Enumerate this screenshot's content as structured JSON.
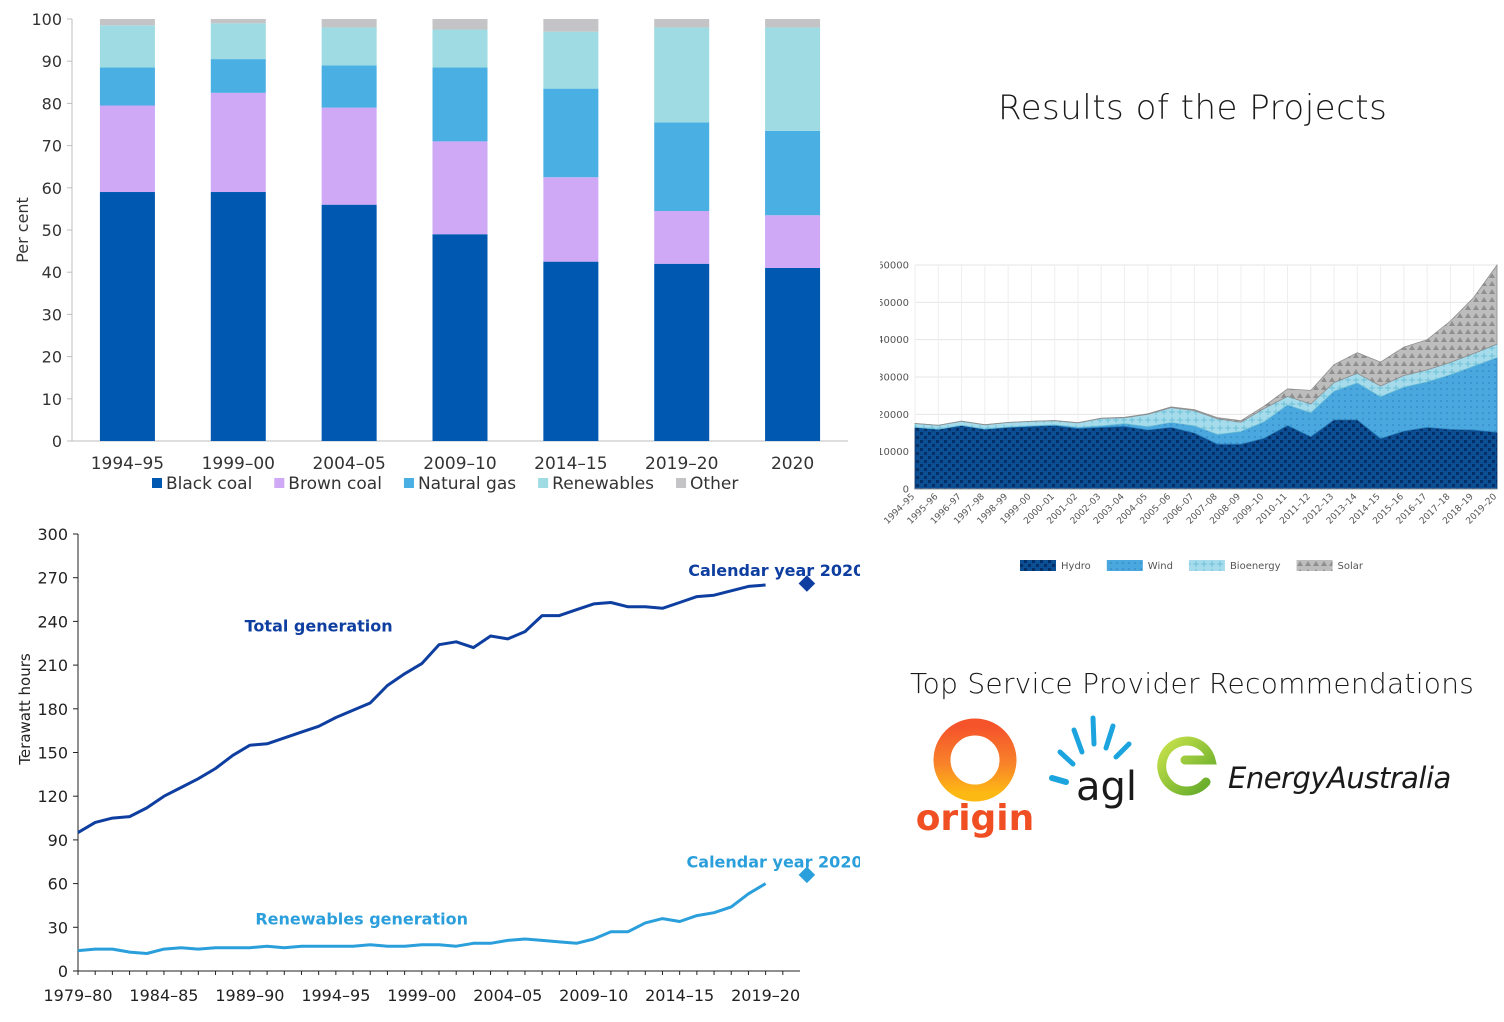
{
  "page": {
    "results_title": "Results of the Projects",
    "providers_title": "Top Service Provider Recommendations"
  },
  "providers": [
    {
      "name": "origin",
      "brand_colors": [
        "#f04e23",
        "#fdb913"
      ],
      "icon": "origin-sun-logo"
    },
    {
      "name": "agl",
      "brand_colors": [
        "#1ba4dd"
      ],
      "icon": "agl-sunburst-logo"
    },
    {
      "name": "EnergyAustralia",
      "brand_colors": [
        "#8cc63f",
        "#1a1a1a"
      ],
      "icon": "energyaustralia-e-logo"
    }
  ],
  "chart_data": [
    {
      "id": "generation-mix",
      "type": "bar",
      "stacked": true,
      "ylabel": "Per cent",
      "ylim": [
        0,
        100
      ],
      "yticks": [
        0,
        10,
        20,
        30,
        40,
        50,
        60,
        70,
        80,
        90,
        100
      ],
      "categories": [
        "1994–95",
        "1999–00",
        "2004–05",
        "2009–10",
        "2014–15",
        "2019–20",
        "2020"
      ],
      "series": [
        {
          "name": "Black coal",
          "color": "#0058b0",
          "values": [
            59,
            59,
            56,
            49,
            42.5,
            42,
            41
          ]
        },
        {
          "name": "Brown coal",
          "color": "#cfa9f5",
          "values": [
            20.5,
            23.5,
            23,
            22,
            20,
            12.5,
            12.5
          ]
        },
        {
          "name": "Natural gas",
          "color": "#4aafe2",
          "values": [
            9,
            8,
            10,
            17.5,
            21,
            21,
            20
          ]
        },
        {
          "name": "Renewables",
          "color": "#9edbe2",
          "values": [
            10,
            8.5,
            9,
            9,
            13.5,
            22.5,
            24.5
          ]
        },
        {
          "name": "Other",
          "color": "#c4c4c6",
          "values": [
            1.5,
            1,
            2,
            2.5,
            3,
            2,
            2
          ]
        }
      ],
      "legend_position": "bottom"
    },
    {
      "id": "generation-trend",
      "type": "line",
      "ylabel": "Terawatt hours",
      "ylim": [
        0,
        300
      ],
      "yticks": [
        0,
        30,
        60,
        90,
        120,
        150,
        180,
        210,
        240,
        270,
        300
      ],
      "xlim": [
        1979,
        2021
      ],
      "xtick_positions": [
        1979,
        1984,
        1989,
        1994,
        1999,
        2004,
        2009,
        2014,
        2019
      ],
      "xtick_labels": [
        "1979–80",
        "1984–85",
        "1989–90",
        "1994–95",
        "1999–00",
        "2004–05",
        "2009–10",
        "2014–15",
        "2019–20"
      ],
      "x": [
        1979,
        1980,
        1981,
        1982,
        1983,
        1984,
        1985,
        1986,
        1987,
        1988,
        1989,
        1990,
        1991,
        1992,
        1993,
        1994,
        1995,
        1996,
        1997,
        1998,
        1999,
        2000,
        2001,
        2002,
        2003,
        2004,
        2005,
        2006,
        2007,
        2008,
        2009,
        2010,
        2011,
        2012,
        2013,
        2014,
        2015,
        2016,
        2017,
        2018,
        2019
      ],
      "series": [
        {
          "name": "Total generation",
          "color": "#0e3fa0",
          "values": [
            95,
            102,
            105,
            106,
            112,
            120,
            126,
            132,
            139,
            148,
            155,
            156,
            160,
            164,
            168,
            174,
            179,
            184,
            196,
            204,
            211,
            224,
            226,
            222,
            230,
            228,
            233,
            244,
            244,
            248,
            252,
            253,
            250,
            250,
            249,
            253,
            257,
            258,
            261,
            264,
            265
          ],
          "label_anchor": [
            1993,
            233
          ],
          "end_marker": {
            "label": "Calendar year 2020",
            "x": 2021.4,
            "y": 266,
            "label_anchor": [
              2014.5,
              271
            ]
          }
        },
        {
          "name": "Renewables generation",
          "color": "#2a9fdb",
          "values": [
            14,
            15,
            15,
            13,
            12,
            15,
            16,
            15,
            16,
            16,
            16,
            17,
            16,
            17,
            17,
            17,
            17,
            18,
            17,
            17,
            18,
            18,
            17,
            19,
            19,
            21,
            22,
            21,
            20,
            19,
            22,
            27,
            27,
            33,
            36,
            34,
            38,
            40,
            44,
            53,
            60
          ],
          "label_anchor": [
            1995.5,
            32
          ],
          "end_marker": {
            "label": "Calendar year 2020",
            "x": 2021.4,
            "y": 66,
            "label_anchor": [
              2014.4,
              71
            ]
          }
        }
      ]
    },
    {
      "id": "renewables-by-source",
      "type": "area",
      "stacked": true,
      "ylim": [
        0,
        60000
      ],
      "yticks": [
        0,
        10000,
        20000,
        30000,
        40000,
        50000,
        60000
      ],
      "categories": [
        "1994–95",
        "1995–96",
        "1996–97",
        "1997–98",
        "1998–99",
        "1999–00",
        "2000–01",
        "2001–02",
        "2002–03",
        "2003–04",
        "2004–05",
        "2005–06",
        "2006–07",
        "2007–08",
        "2008–09",
        "2009–10",
        "2010–11",
        "2011–12",
        "2012–13",
        "2013–14",
        "2014–15",
        "2015–16",
        "2016–17",
        "2017–18",
        "2018–19",
        "2019–20"
      ],
      "series": [
        {
          "name": "Hydro",
          "color": "#0b4e94",
          "values": [
            16500,
            16000,
            17000,
            16000,
            16500,
            16800,
            17000,
            16200,
            16500,
            16800,
            15800,
            16500,
            15000,
            12000,
            12000,
            13600,
            17000,
            14000,
            18500,
            18500,
            13500,
            15500,
            16500,
            16000,
            15800,
            15200
          ]
        },
        {
          "name": "Wind",
          "color": "#4aa8df",
          "values": [
            50,
            50,
            50,
            100,
            100,
            100,
            200,
            300,
            400,
            700,
            900,
            1300,
            1900,
            2600,
            3400,
            4400,
            5500,
            6400,
            7700,
            9900,
            11200,
            11800,
            12200,
            14600,
            17100,
            20000
          ]
        },
        {
          "name": "Bioenergy",
          "color": "#9fd7e8",
          "values": [
            1000,
            1000,
            1100,
            1100,
            1200,
            1200,
            1100,
            1200,
            2000,
            1600,
            3300,
            4000,
            4100,
            4200,
            2500,
            3600,
            2300,
            2400,
            2300,
            2600,
            2900,
            3100,
            3200,
            3300,
            3400,
            3600
          ]
        },
        {
          "name": "Solar",
          "color": "#b3b3b3",
          "values": [
            20,
            20,
            30,
            30,
            40,
            40,
            50,
            60,
            80,
            100,
            150,
            200,
            250,
            300,
            400,
            600,
            2000,
            3600,
            4800,
            5500,
            6400,
            7600,
            8100,
            11100,
            15000,
            21200
          ]
        }
      ],
      "legend_position": "bottom"
    }
  ]
}
